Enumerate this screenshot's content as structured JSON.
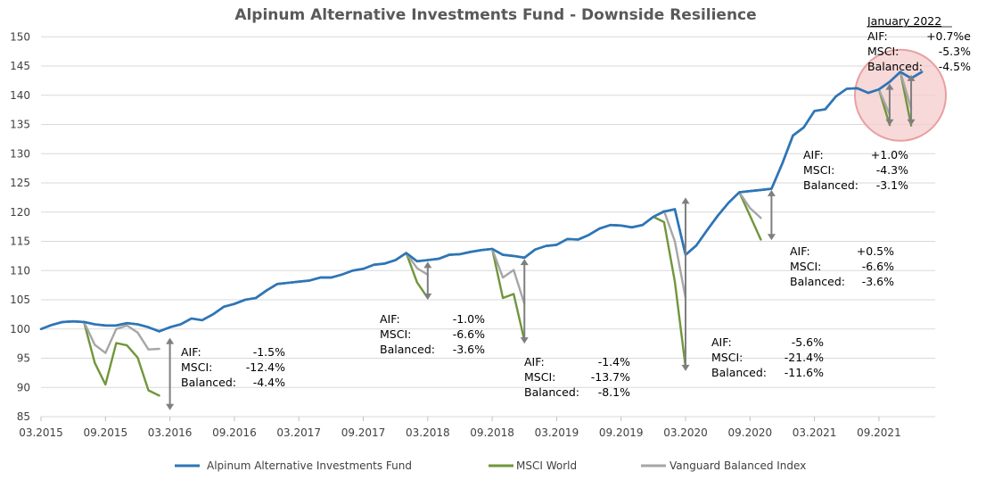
{
  "chart_data": {
    "type": "line",
    "title": "Alpinum Alternative Investments Fund - Downside Resilience",
    "xlabel": "",
    "ylabel": "",
    "ylim": [
      85,
      150
    ],
    "yticks": [
      "150",
      "145",
      "140",
      "135",
      "130",
      "125",
      "120",
      "115",
      "110",
      "105",
      "100",
      "95",
      "90",
      "85"
    ],
    "xlim": [
      "2015-03",
      "2022-01"
    ],
    "xticks": [
      {
        "date": "2015-03",
        "label": "03.2015"
      },
      {
        "date": "2015-09",
        "label": "09.2015"
      },
      {
        "date": "2016-03",
        "label": "03.2016"
      },
      {
        "date": "2016-09",
        "label": "09.2016"
      },
      {
        "date": "2017-03",
        "label": "03.2017"
      },
      {
        "date": "2017-09",
        "label": "09.2017"
      },
      {
        "date": "2018-03",
        "label": "03.2018"
      },
      {
        "date": "2018-09",
        "label": "09.2018"
      },
      {
        "date": "2019-03",
        "label": "03.2019"
      },
      {
        "date": "2019-09",
        "label": "09.2019"
      },
      {
        "date": "2020-03",
        "label": "03.2020"
      },
      {
        "date": "2020-09",
        "label": "09.2020"
      },
      {
        "date": "2021-03",
        "label": "03.2021"
      },
      {
        "date": "2021-09",
        "label": "09.2021"
      }
    ],
    "grid": true,
    "legend_position": "bottom",
    "series": [
      {
        "name": "Alpinum Alternative Investments Fund",
        "color": "#2E75B6",
        "points": [
          [
            "2015-03",
            100.0
          ],
          [
            "2015-04",
            100.7
          ],
          [
            "2015-05",
            101.2
          ],
          [
            "2015-06",
            101.3
          ],
          [
            "2015-07",
            101.2
          ],
          [
            "2015-08",
            100.8
          ],
          [
            "2015-09",
            100.6
          ],
          [
            "2015-10",
            100.6
          ],
          [
            "2015-11",
            101.0
          ],
          [
            "2015-12",
            100.8
          ],
          [
            "2016-01",
            100.3
          ],
          [
            "2016-02",
            99.6
          ],
          [
            "2016-03",
            100.3
          ],
          [
            "2016-04",
            100.8
          ],
          [
            "2016-05",
            101.8
          ],
          [
            "2016-06",
            101.5
          ],
          [
            "2016-07",
            102.5
          ],
          [
            "2016-08",
            103.8
          ],
          [
            "2016-09",
            104.3
          ],
          [
            "2016-10",
            105.0
          ],
          [
            "2016-11",
            105.3
          ],
          [
            "2016-12",
            106.6
          ],
          [
            "2017-01",
            107.7
          ],
          [
            "2017-02",
            107.9
          ],
          [
            "2017-03",
            108.1
          ],
          [
            "2017-04",
            108.3
          ],
          [
            "2017-05",
            108.8
          ],
          [
            "2017-06",
            108.8
          ],
          [
            "2017-07",
            109.3
          ],
          [
            "2017-08",
            110.0
          ],
          [
            "2017-09",
            110.3
          ],
          [
            "2017-10",
            111.0
          ],
          [
            "2017-11",
            111.2
          ],
          [
            "2017-12",
            111.8
          ],
          [
            "2018-01",
            113.0
          ],
          [
            "2018-02",
            111.6
          ],
          [
            "2018-03",
            111.8
          ],
          [
            "2018-04",
            112.0
          ],
          [
            "2018-05",
            112.7
          ],
          [
            "2018-06",
            112.8
          ],
          [
            "2018-07",
            113.2
          ],
          [
            "2018-08",
            113.5
          ],
          [
            "2018-09",
            113.7
          ],
          [
            "2018-10",
            112.7
          ],
          [
            "2018-11",
            112.5
          ],
          [
            "2018-12",
            112.2
          ],
          [
            "2019-01",
            113.6
          ],
          [
            "2019-02",
            114.2
          ],
          [
            "2019-03",
            114.4
          ],
          [
            "2019-04",
            115.4
          ],
          [
            "2019-05",
            115.3
          ],
          [
            "2019-06",
            116.1
          ],
          [
            "2019-07",
            117.2
          ],
          [
            "2019-08",
            117.8
          ],
          [
            "2019-09",
            117.7
          ],
          [
            "2019-10",
            117.4
          ],
          [
            "2019-11",
            117.8
          ],
          [
            "2019-12",
            119.2
          ],
          [
            "2020-01",
            120.1
          ],
          [
            "2020-02",
            120.5
          ],
          [
            "2020-03",
            112.7
          ],
          [
            "2020-04",
            114.3
          ],
          [
            "2020-05",
            116.9
          ],
          [
            "2020-06",
            119.4
          ],
          [
            "2020-07",
            121.6
          ],
          [
            "2020-08",
            123.4
          ],
          [
            "2020-09",
            123.6
          ],
          [
            "2020-10",
            123.8
          ],
          [
            "2020-11",
            124.0
          ],
          [
            "2020-12",
            128.3
          ],
          [
            "2021-01",
            133.1
          ],
          [
            "2021-02",
            134.5
          ],
          [
            "2021-03",
            137.3
          ],
          [
            "2021-04",
            137.6
          ],
          [
            "2021-05",
            139.8
          ],
          [
            "2021-06",
            141.1
          ],
          [
            "2021-07",
            141.2
          ],
          [
            "2021-08",
            140.4
          ],
          [
            "2021-09",
            141.0
          ],
          [
            "2021-10",
            142.3
          ],
          [
            "2021-11",
            144.0
          ],
          [
            "2021-12",
            142.9
          ],
          [
            "2022-01",
            144.0
          ]
        ]
      },
      {
        "name": "MSCI World",
        "color": "#70963B",
        "segments": [
          [
            [
              "2015-07",
              101.2
            ],
            [
              "2015-08",
              94.2
            ],
            [
              "2015-09",
              90.5
            ],
            [
              "2015-10",
              97.6
            ],
            [
              "2015-11",
              97.2
            ],
            [
              "2015-12",
              95.1
            ],
            [
              "2016-01",
              89.5
            ],
            [
              "2016-02",
              88.6
            ]
          ],
          [
            [
              "2018-01",
              113.0
            ],
            [
              "2018-02",
              108.0
            ],
            [
              "2018-03",
              105.3
            ]
          ],
          [
            [
              "2018-09",
              113.7
            ],
            [
              "2018-10",
              105.3
            ],
            [
              "2018-11",
              106.0
            ],
            [
              "2018-12",
              98.0
            ]
          ],
          [
            [
              "2019-12",
              119.2
            ],
            [
              "2020-01",
              118.3
            ],
            [
              "2020-02",
              108.1
            ],
            [
              "2020-03",
              93.5
            ]
          ],
          [
            [
              "2020-08",
              123.4
            ],
            [
              "2020-09",
              119.4
            ],
            [
              "2020-10",
              115.3
            ]
          ],
          [
            [
              "2021-09",
              141.0
            ],
            [
              "2021-10",
              134.9
            ]
          ],
          [
            [
              "2021-11",
              144.0
            ],
            [
              "2021-12",
              134.8
            ]
          ]
        ]
      },
      {
        "name": "Vanguard Balanced Index",
        "color": "#A6A6A6",
        "segments": [
          [
            [
              "2015-07",
              101.2
            ],
            [
              "2015-08",
              97.3
            ],
            [
              "2015-09",
              95.9
            ],
            [
              "2015-10",
              100.0
            ],
            [
              "2015-11",
              100.6
            ],
            [
              "2015-12",
              99.4
            ],
            [
              "2016-01",
              96.5
            ],
            [
              "2016-02",
              96.6
            ]
          ],
          [
            [
              "2018-01",
              113.0
            ],
            [
              "2018-02",
              110.4
            ],
            [
              "2018-03",
              109.3
            ]
          ],
          [
            [
              "2018-09",
              113.7
            ],
            [
              "2018-10",
              108.8
            ],
            [
              "2018-11",
              110.1
            ],
            [
              "2018-12",
              104.3
            ]
          ],
          [
            [
              "2019-12",
              119.2
            ],
            [
              "2020-01",
              120.2
            ],
            [
              "2020-02",
              115.0
            ],
            [
              "2020-03",
              105.3
            ]
          ],
          [
            [
              "2020-08",
              123.4
            ],
            [
              "2020-09",
              120.7
            ],
            [
              "2020-10",
              119.0
            ]
          ],
          [
            [
              "2021-09",
              141.0
            ],
            [
              "2021-10",
              136.7
            ]
          ],
          [
            [
              "2021-11",
              144.0
            ],
            [
              "2021-12",
              137.7
            ]
          ]
        ]
      }
    ],
    "drawdown_arrows": [
      {
        "date": "2016-03",
        "from": 98.5,
        "to": 86.1
      },
      {
        "date": "2018-03",
        "from": 111.5,
        "to": 105.0
      },
      {
        "date": "2018-12",
        "from": 112.0,
        "to": 97.5
      },
      {
        "date": "2020-03",
        "from": 122.5,
        "to": 92.8
      },
      {
        "date": "2020-11",
        "from": 123.8,
        "to": 115.2
      },
      {
        "date": "2021-10",
        "from": 142.0,
        "to": 134.8
      },
      {
        "date": "2021-12",
        "from": 143.5,
        "to": 134.8
      }
    ],
    "highlight_circle": {
      "date": "2021-11",
      "value": 140.0,
      "color": "#E8A0A0"
    },
    "annotations": [
      {
        "id": "a2016",
        "lines": [
          [
            "AIF:",
            "-1.5%"
          ],
          [
            "MSCI:",
            "-12.4%"
          ],
          [
            "Balanced:",
            "-4.4%"
          ]
        ]
      },
      {
        "id": "a2018a",
        "lines": [
          [
            "AIF:",
            "-1.0%"
          ],
          [
            "MSCI:",
            "-6.6%"
          ],
          [
            "Balanced:",
            "-3.6%"
          ]
        ]
      },
      {
        "id": "a2018b",
        "lines": [
          [
            "AIF:",
            "-1.4%"
          ],
          [
            "MSCI:",
            "-13.7%"
          ],
          [
            "Balanced:",
            "-8.1%"
          ]
        ]
      },
      {
        "id": "a2020a",
        "lines": [
          [
            "AIF:",
            "-5.6%"
          ],
          [
            "MSCI:",
            "-21.4%"
          ],
          [
            "Balanced:",
            "-11.6%"
          ]
        ]
      },
      {
        "id": "a2020b",
        "lines": [
          [
            "AIF:",
            "+0.5%"
          ],
          [
            "MSCI:",
            "-6.6%"
          ],
          [
            "Balanced:",
            "-3.6%"
          ]
        ]
      },
      {
        "id": "a2021",
        "lines": [
          [
            "AIF:",
            "+1.0%"
          ],
          [
            "MSCI:",
            "-4.3%"
          ],
          [
            "Balanced:",
            "-3.1%"
          ]
        ]
      },
      {
        "id": "a2022",
        "title": "January 2022",
        "lines": [
          [
            "AIF:",
            "+0.7%e"
          ],
          [
            "MSCI:",
            "-5.3%"
          ],
          [
            "Balanced:",
            "-4.5%"
          ]
        ]
      }
    ]
  }
}
